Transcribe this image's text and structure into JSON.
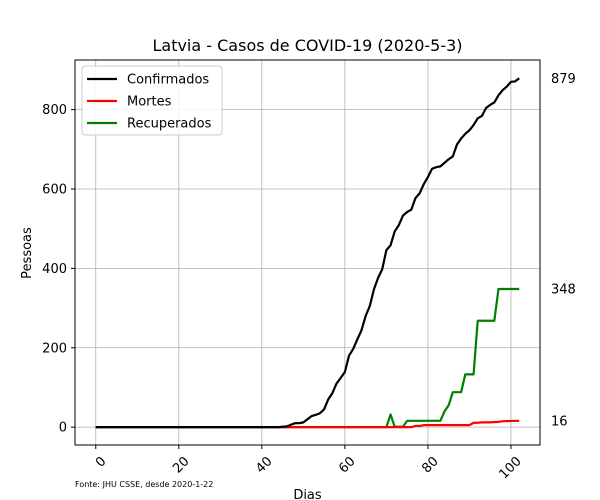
{
  "chart_data": {
    "type": "line",
    "title": "Latvia - Casos de COVID-19 (2020-5-3)",
    "xlabel": "Dias",
    "ylabel": "Pessoas",
    "xlim": [
      -5,
      107
    ],
    "ylim": [
      -45,
      925
    ],
    "xticks": [
      0,
      20,
      40,
      60,
      80,
      100
    ],
    "yticks": [
      0,
      200,
      400,
      600,
      800
    ],
    "grid": true,
    "legend_position": "top-left",
    "source_note": "Fonte: JHU CSSE, desde 2020-1-22",
    "end_labels": [
      "879",
      "348",
      "16"
    ],
    "series": [
      {
        "name": "Confirmados",
        "color": "#000000",
        "points": [
          [
            0,
            0
          ],
          [
            44,
            0
          ],
          [
            45,
            1
          ],
          [
            46,
            2
          ],
          [
            47,
            6
          ],
          [
            48,
            10
          ],
          [
            49,
            10
          ],
          [
            50,
            12
          ],
          [
            51,
            20
          ],
          [
            52,
            28
          ],
          [
            53,
            31
          ],
          [
            54,
            35
          ],
          [
            55,
            45
          ],
          [
            56,
            70
          ],
          [
            57,
            86
          ],
          [
            58,
            110
          ],
          [
            59,
            124
          ],
          [
            60,
            139
          ],
          [
            61,
            180
          ],
          [
            62,
            197
          ],
          [
            63,
            221
          ],
          [
            64,
            244
          ],
          [
            65,
            280
          ],
          [
            66,
            305
          ],
          [
            67,
            347
          ],
          [
            68,
            376
          ],
          [
            69,
            398
          ],
          [
            70,
            446
          ],
          [
            71,
            458
          ],
          [
            72,
            493
          ],
          [
            73,
            509
          ],
          [
            74,
            533
          ],
          [
            75,
            542
          ],
          [
            76,
            548
          ],
          [
            77,
            577
          ],
          [
            78,
            589
          ],
          [
            79,
            612
          ],
          [
            80,
            630
          ],
          [
            81,
            651
          ],
          [
            82,
            655
          ],
          [
            83,
            657
          ],
          [
            84,
            666
          ],
          [
            85,
            675
          ],
          [
            86,
            682
          ],
          [
            87,
            712
          ],
          [
            88,
            727
          ],
          [
            89,
            739
          ],
          [
            90,
            748
          ],
          [
            91,
            761
          ],
          [
            92,
            778
          ],
          [
            93,
            784
          ],
          [
            94,
            804
          ],
          [
            95,
            812
          ],
          [
            96,
            818
          ],
          [
            97,
            836
          ],
          [
            98,
            849
          ],
          [
            99,
            858
          ],
          [
            100,
            870
          ],
          [
            101,
            871
          ],
          [
            102,
            879
          ]
        ]
      },
      {
        "name": "Mortes",
        "color": "#ff0000",
        "points": [
          [
            0,
            0
          ],
          [
            76,
            0
          ],
          [
            77,
            3
          ],
          [
            78,
            3
          ],
          [
            79,
            5
          ],
          [
            80,
            5
          ],
          [
            81,
            5
          ],
          [
            82,
            5
          ],
          [
            83,
            5
          ],
          [
            90,
            5
          ],
          [
            91,
            11
          ],
          [
            92,
            11
          ],
          [
            93,
            12
          ],
          [
            95,
            12
          ],
          [
            96,
            13
          ],
          [
            97,
            13
          ],
          [
            98,
            15
          ],
          [
            102,
            16
          ]
        ]
      },
      {
        "name": "Recuperados",
        "color": "#008000",
        "points": [
          [
            0,
            0
          ],
          [
            70,
            0
          ],
          [
            71,
            32
          ],
          [
            72,
            1
          ],
          [
            74,
            1
          ],
          [
            75,
            16
          ],
          [
            83,
            16
          ],
          [
            84,
            40
          ],
          [
            85,
            55
          ],
          [
            86,
            88
          ],
          [
            88,
            88
          ],
          [
            89,
            133
          ],
          [
            91,
            133
          ],
          [
            92,
            268
          ],
          [
            96,
            268
          ],
          [
            97,
            348
          ],
          [
            102,
            348
          ]
        ]
      }
    ]
  }
}
